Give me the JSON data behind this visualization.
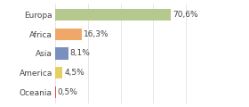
{
  "categories": [
    "Europa",
    "Africa",
    "Asia",
    "America",
    "Oceania"
  ],
  "values": [
    70.6,
    16.3,
    8.1,
    4.5,
    0.5
  ],
  "labels": [
    "70,6%",
    "16,3%",
    "8,1%",
    "4,5%",
    "0,5%"
  ],
  "colors": [
    "#b5c98e",
    "#f0a868",
    "#7b8fbf",
    "#e8d060",
    "#e05050"
  ],
  "background_color": "#ffffff",
  "xlim": [
    0,
    100
  ],
  "bar_height": 0.62,
  "label_fontsize": 6.5,
  "tick_fontsize": 6.5,
  "figsize": [
    2.8,
    1.2
  ],
  "dpi": 100
}
